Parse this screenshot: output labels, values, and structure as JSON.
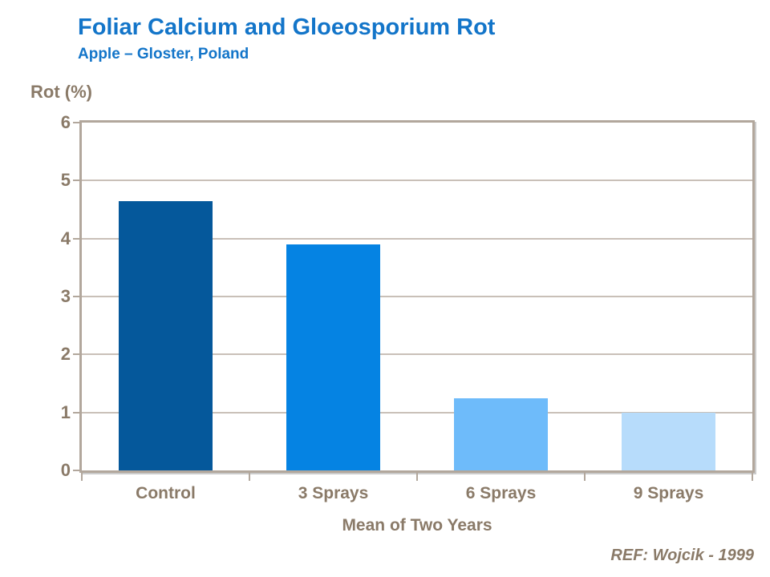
{
  "header": {
    "title": "Foliar Calcium and Gloeosporium Rot",
    "subtitle": "Apple – Gloster, Poland"
  },
  "chart_data": {
    "type": "bar",
    "title": "Foliar Calcium and Gloeosporium Rot",
    "subtitle": "Apple – Gloster, Poland",
    "categories": [
      "Control",
      "3 Sprays",
      "6 Sprays",
      "9 Sprays"
    ],
    "values": [
      4.65,
      3.9,
      1.25,
      1.0
    ],
    "bar_colors": [
      "#05589b",
      "#0583e3",
      "#6ebbfa",
      "#b7dcfb"
    ],
    "ylabel": "Rot (%)",
    "xlabel": "Mean of Two Years",
    "ylim": [
      0,
      6
    ],
    "yticks": [
      0,
      1,
      2,
      3,
      4,
      5,
      6
    ],
    "grid": true,
    "legend": false
  },
  "footer": {
    "reference": "REF: Wojcik - 1999"
  },
  "colors": {
    "title_blue": "#1375c9",
    "axis_text_brown": "#8a7a68",
    "frame": "#b2a79c",
    "gridline": "#c9c0b8",
    "background": "#ffffff"
  }
}
